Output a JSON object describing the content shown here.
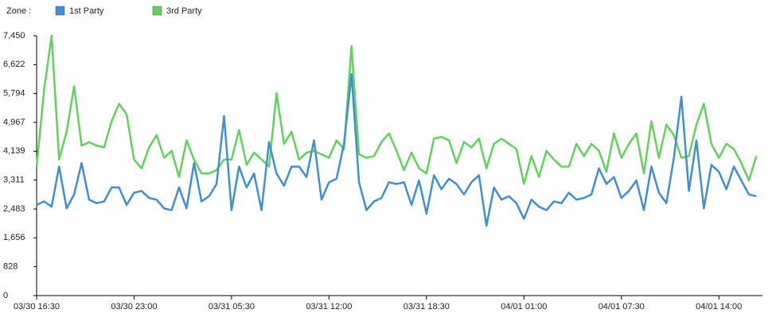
{
  "chart_data": {
    "type": "line",
    "legend_title": "Zone :",
    "categories": [
      "03/30 16:30",
      null,
      null,
      null,
      null,
      null,
      null,
      null,
      null,
      null,
      null,
      null,
      null,
      "03/30 23:00",
      null,
      null,
      null,
      null,
      null,
      null,
      null,
      null,
      null,
      null,
      null,
      null,
      "03/31 05:30",
      null,
      null,
      null,
      null,
      null,
      null,
      null,
      null,
      null,
      null,
      null,
      null,
      "03/31 12:00",
      null,
      null,
      null,
      null,
      null,
      null,
      null,
      null,
      null,
      null,
      null,
      null,
      "03/31 18:30",
      null,
      null,
      null,
      null,
      null,
      null,
      null,
      null,
      null,
      null,
      null,
      null,
      "04/01 01:00",
      null,
      null,
      null,
      null,
      null,
      null,
      null,
      null,
      null,
      null,
      null,
      null,
      "04/01 07:30",
      null,
      null,
      null,
      null,
      null,
      null,
      null,
      null,
      null,
      null,
      null,
      null,
      "04/01 14:00",
      null,
      null,
      null,
      null,
      null
    ],
    "series": [
      {
        "name": "1st Party",
        "color": "#3f8fd2",
        "values": [
          2600,
          2700,
          2550,
          3700,
          2500,
          2900,
          3800,
          2750,
          2650,
          2700,
          3100,
          3100,
          2600,
          2950,
          3000,
          2800,
          2750,
          2500,
          2450,
          3100,
          2500,
          3800,
          2700,
          2850,
          3200,
          5150,
          2450,
          3700,
          3100,
          3500,
          2450,
          4400,
          3500,
          3150,
          3700,
          3700,
          3400,
          4450,
          2750,
          3250,
          3350,
          4350,
          6350,
          3250,
          2450,
          2700,
          2800,
          3250,
          3200,
          3250,
          2600,
          3300,
          2350,
          3450,
          3050,
          3350,
          3200,
          2900,
          3250,
          3450,
          2000,
          3100,
          2750,
          2850,
          2650,
          2200,
          2750,
          2550,
          2450,
          2700,
          2650,
          2950,
          2750,
          2800,
          2900,
          3650,
          3200,
          3400,
          2800,
          3000,
          3300,
          2450,
          3700,
          2950,
          2650,
          3950,
          5700,
          3000,
          4450,
          2500,
          3750,
          3550,
          3050,
          3700,
          3300,
          2900,
          2850
        ]
      },
      {
        "name": "3rd Party",
        "color": "#5fd35a",
        "values": [
          3700,
          5900,
          7450,
          3900,
          4700,
          6000,
          4300,
          4400,
          4300,
          4250,
          5000,
          5500,
          5200,
          3900,
          3650,
          4250,
          4600,
          3950,
          4150,
          3400,
          4450,
          3900,
          3500,
          3500,
          3600,
          3900,
          3900,
          4750,
          3750,
          4100,
          3900,
          3700,
          5800,
          4350,
          4700,
          3900,
          4100,
          4150,
          4050,
          3950,
          4450,
          4200,
          7150,
          4050,
          3950,
          4000,
          4400,
          4650,
          4150,
          3600,
          4100,
          3650,
          3500,
          4500,
          4550,
          4450,
          3800,
          4400,
          4250,
          4500,
          3650,
          4350,
          4500,
          4350,
          4200,
          3200,
          4000,
          3400,
          4150,
          3900,
          3700,
          3700,
          4350,
          4000,
          4350,
          4150,
          3550,
          4650,
          3950,
          4350,
          4650,
          3500,
          5000,
          3950,
          4900,
          4600,
          3950,
          4000,
          4900,
          5500,
          4350,
          3950,
          4350,
          4200,
          3800,
          3300,
          4000
        ]
      }
    ],
    "ylim": [
      0,
      7450
    ],
    "yticks": [
      0,
      828,
      {
        "value": 1656,
        "label": "1,656"
      },
      {
        "value": 2483,
        "label": "2,483"
      },
      {
        "value": 3311,
        "label": "3,311"
      },
      {
        "value": 4139,
        "label": "4,139"
      },
      {
        "value": 4967,
        "label": "4,967"
      },
      {
        "value": 5794,
        "label": "5,794"
      },
      {
        "value": 6622,
        "label": "6,622"
      },
      {
        "value": 7450,
        "label": "7,450"
      }
    ],
    "grid": false
  }
}
